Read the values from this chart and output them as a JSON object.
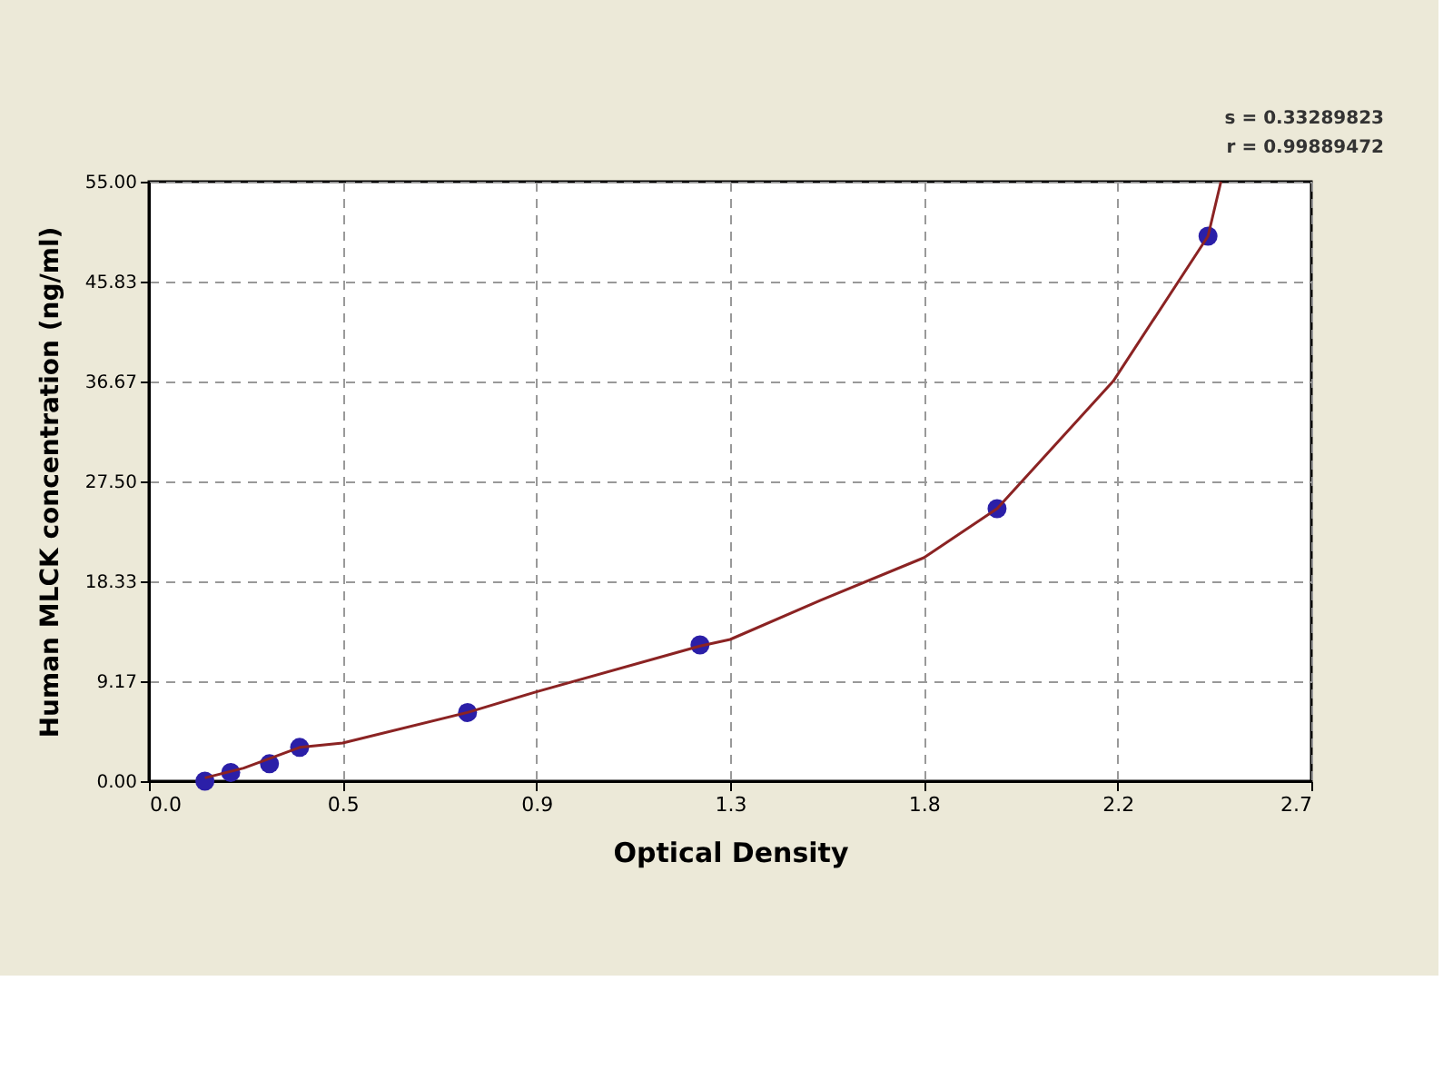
{
  "chart_data": {
    "type": "scatter",
    "xlabel": "Optical Density",
    "ylabel": "Human MLCK concentration (ng/ml)",
    "annotations": [
      "s = 0.33289823",
      "r = 0.99889472"
    ],
    "series": [
      {
        "color": "#2b1fa8",
        "marker": "circle",
        "x": [
          0.13,
          0.19,
          0.28,
          0.35,
          0.74,
          1.28,
          1.97,
          2.46
        ],
        "values": [
          0,
          0.8,
          1.6,
          3.1,
          6.3,
          12.5,
          25,
          50
        ]
      },
      {
        "type": "line",
        "color": "#8b2323",
        "x": [
          0.13,
          0.22,
          0.35,
          0.45,
          0.74,
          0.9,
          1.28,
          1.35,
          1.56,
          1.8,
          1.97,
          2.24,
          2.46,
          2.49
        ],
        "values": [
          0.3,
          1.2,
          3.1,
          3.5,
          6.3,
          8.2,
          12.4,
          13.0,
          16.6,
          20.5,
          25,
          36.7,
          50,
          55
        ]
      }
    ],
    "xlim": [
      0,
      2.7
    ],
    "xticks": [
      {
        "value": 0,
        "label": "0.0"
      },
      {
        "value": 0.45,
        "label": "0.5"
      },
      {
        "value": 0.9,
        "label": "0.9"
      },
      {
        "value": 1.35,
        "label": "1.3"
      },
      {
        "value": 1.8,
        "label": "1.8"
      },
      {
        "value": 2.25,
        "label": "2.2"
      },
      {
        "value": 2.7,
        "label": "2.7"
      }
    ],
    "ylim": [
      0,
      55
    ],
    "yticks": [
      {
        "value": 0,
        "label": "0.00"
      },
      {
        "value": 9.17,
        "label": "9.17"
      },
      {
        "value": 18.33,
        "label": "18.33"
      },
      {
        "value": 27.5,
        "label": "27.50"
      },
      {
        "value": 36.67,
        "label": "36.67"
      },
      {
        "value": 45.83,
        "label": "45.83"
      },
      {
        "value": 55,
        "label": "55.00"
      }
    ],
    "grid": true
  }
}
